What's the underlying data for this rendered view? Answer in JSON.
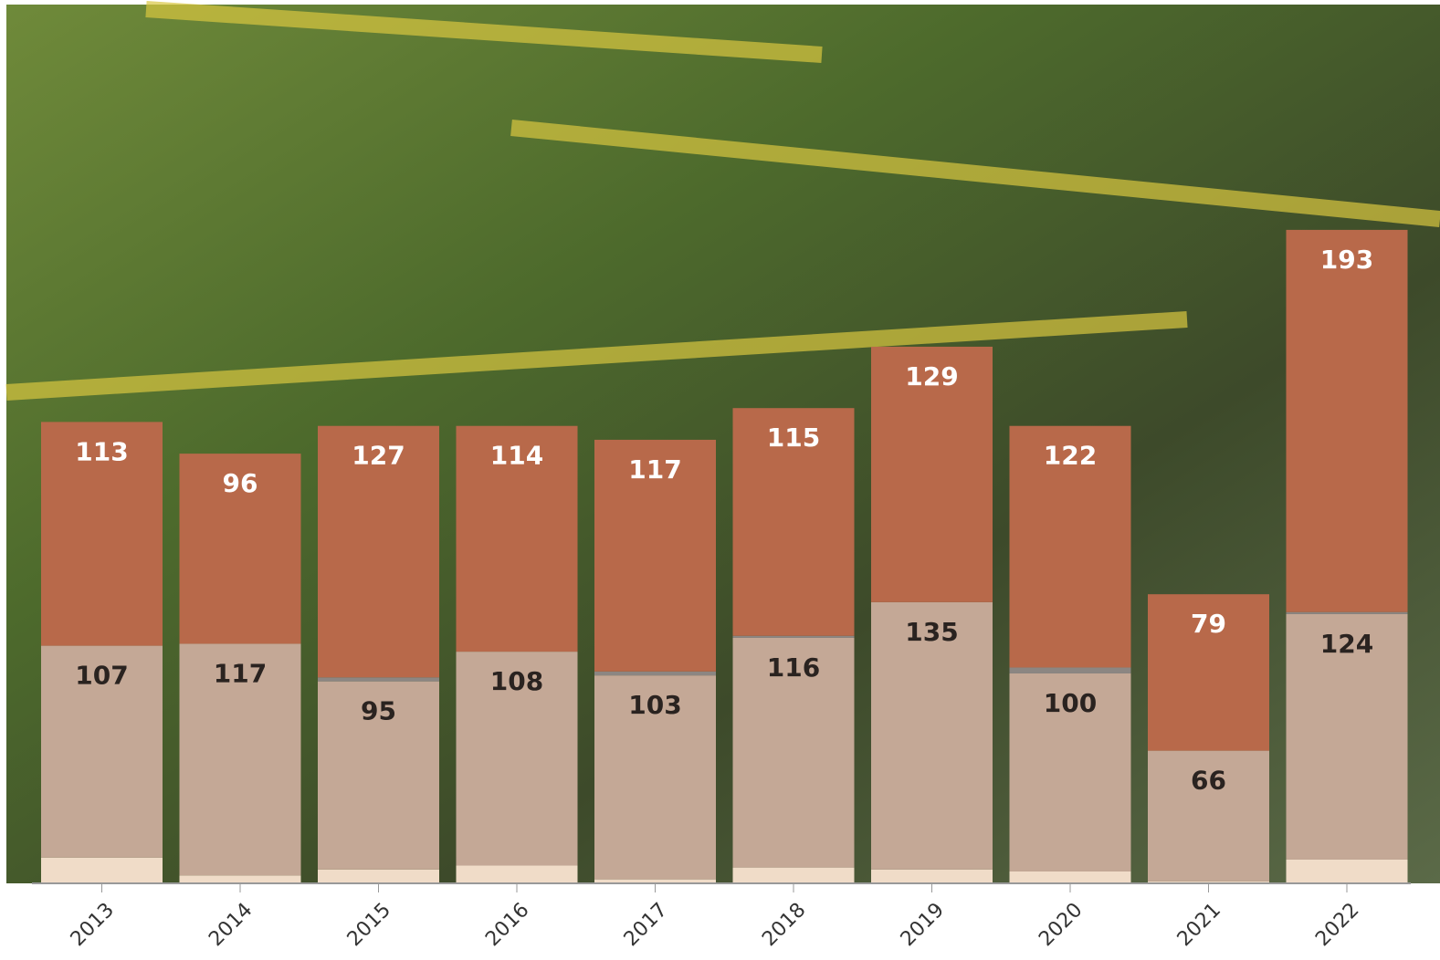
{
  "chart_data": {
    "type": "stacked-bar",
    "categories": [
      "2013",
      "2014",
      "2015",
      "2016",
      "2017",
      "2018",
      "2019",
      "2020",
      "2021",
      "2022"
    ],
    "series": [
      {
        "color": "#f0dcc8",
        "values": [
          13,
          4,
          7,
          9,
          2,
          8,
          7,
          6,
          1,
          12
        ]
      },
      {
        "color": "#c4a896",
        "values": [
          107,
          117,
          95,
          108,
          103,
          116,
          135,
          100,
          66,
          124
        ],
        "labeled": true,
        "label_color": "#2a2320"
      },
      {
        "color": "#8c8682",
        "values": [
          0,
          0,
          2,
          0,
          2,
          1,
          0,
          3,
          0,
          1
        ]
      },
      {
        "color": "#b8694a",
        "values": [
          113,
          96,
          127,
          114,
          117,
          115,
          129,
          122,
          79,
          193
        ],
        "labeled": true,
        "label_color": "#ffffff"
      }
    ]
  }
}
